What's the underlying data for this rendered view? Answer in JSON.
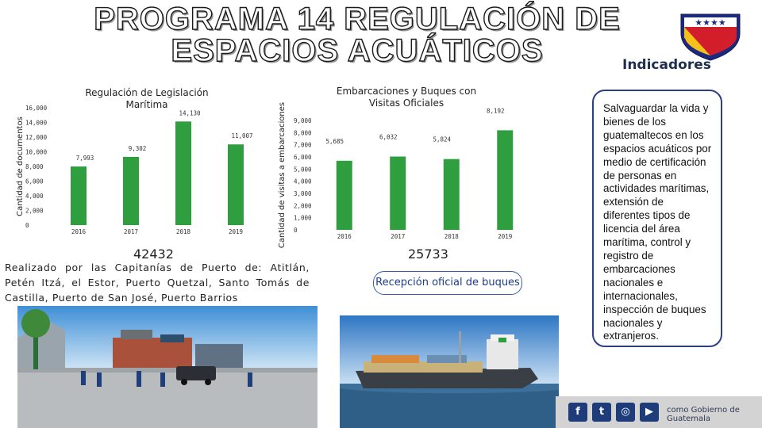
{
  "header": {
    "title_line1": "PROGRAMA 14 REGULACIÓN DE",
    "title_line2": "ESPACIOS ACUÁTICOS",
    "indicadores": "Indicadores"
  },
  "charts": {
    "left": {
      "total": "42432",
      "description": "Realizado por las Capitanías de Puerto de: Atitlán, Petén Itzá, el Estor, Puerto Quetzal, Santo Tomás de Castilla, Puerto de San José, Puerto Barrios"
    },
    "right": {
      "total": "25733",
      "badge": "Recepción oficial de buques"
    }
  },
  "sidebar_text": "Salvaguardar la vida y bienes de los guatemaltecos en los espacios acuáticos por medio de certificación de personas en actividades marítimas, extensión de diferentes tipos de licencia del área marítima, control y registro de embarcaciones nacionales e internacionales, inspección de buques nacionales y extranjeros.",
  "footer": {
    "social_icons": [
      "facebook-icon",
      "twitter-icon",
      "instagram-icon",
      "youtube-icon"
    ],
    "text": "como Gobierno de Guatemala"
  },
  "colors": {
    "bar": "#2e9e3f",
    "border": "#2a3f88",
    "flag_blue": "#1b2a80",
    "flag_red": "#d21f2b",
    "flag_yellow": "#f3c21a"
  },
  "chart_data": [
    {
      "type": "bar",
      "title": "Regulación de Legislación Marítima",
      "ylabel": "Cantidad de documentos",
      "xlabel": "",
      "categories": [
        "2016",
        "2017",
        "2018",
        "2019"
      ],
      "values": [
        7993,
        9302,
        14130,
        11007
      ],
      "value_labels": [
        "7,993",
        "9,302",
        "14,130",
        "11,007"
      ],
      "y_ticks": [
        "0",
        "2,000",
        "4,000",
        "6,000",
        "8,000",
        "10,000",
        "12,000",
        "14,000",
        "16,000"
      ],
      "ylim": [
        0,
        16000
      ],
      "grid": false
    },
    {
      "type": "bar",
      "title": "Embarcaciones y Buques con Visitas Oficiales",
      "ylabel": "Cantidad de visitas a embarcaciones",
      "xlabel": "",
      "categories": [
        "2016",
        "2017",
        "2018",
        "2019"
      ],
      "values": [
        5685,
        6032,
        5824,
        8192
      ],
      "value_labels": [
        "5,685",
        "6,032",
        "5,824",
        "8,192"
      ],
      "y_ticks": [
        "0",
        "1,000",
        "2,000",
        "3,000",
        "4,000",
        "5,000",
        "6,000",
        "7,000",
        "8,000",
        "9,000"
      ],
      "ylim": [
        0,
        9000
      ],
      "grid": false
    }
  ]
}
